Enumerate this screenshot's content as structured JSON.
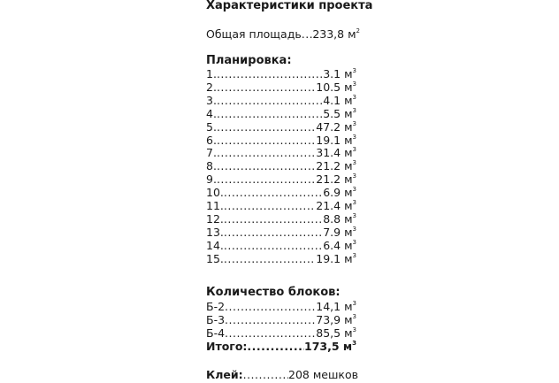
{
  "title": "Характеристики проекта",
  "area": {
    "label": "Общая площадь",
    "value": "233,8 м",
    "sup": "2"
  },
  "layout": {
    "heading": "Планировка:",
    "items": [
      {
        "label": "1. ",
        "value": "3.1 м",
        "sup": "3"
      },
      {
        "label": "2. ",
        "value": "10.5 м",
        "sup": "3"
      },
      {
        "label": "3. ",
        "value": "4.1 м",
        "sup": "3"
      },
      {
        "label": "4. ",
        "value": "5.5 м",
        "sup": "3"
      },
      {
        "label": "5. ",
        "value": "47.2 м",
        "sup": "3"
      },
      {
        "label": "6. ",
        "value": "19.1 м",
        "sup": "3"
      },
      {
        "label": "7. ",
        "value": "31.4 м",
        "sup": "3"
      },
      {
        "label": "8. ",
        "value": "21.2 м",
        "sup": "3"
      },
      {
        "label": "9. ",
        "value": "21.2 м",
        "sup": "3"
      },
      {
        "label": "10. ",
        "value": "6.9 м",
        "sup": "3"
      },
      {
        "label": "11. ",
        "value": "21.4 м",
        "sup": "3"
      },
      {
        "label": "12. ",
        "value": "8.8 м",
        "sup": "3"
      },
      {
        "label": "13. ",
        "value": "7.9 м",
        "sup": "3"
      },
      {
        "label": "14. ",
        "value": "6.4 м",
        "sup": "3"
      },
      {
        "label": "15. ",
        "value": "19.1 м",
        "sup": "3"
      }
    ]
  },
  "blocks": {
    "heading": "Количество блоков:",
    "items": [
      {
        "label": "Б-2",
        "value": "14,1 м",
        "sup": "3"
      },
      {
        "label": "Б-3",
        "value": "73,9 м",
        "sup": "3"
      },
      {
        "label": "Б-4",
        "value": "85,5 м",
        "sup": "3"
      }
    ],
    "total": {
      "label": "Итого:",
      "value": "173,5 м",
      "sup": "3"
    }
  },
  "glue": {
    "label": "Клей:",
    "value": "208 мешков"
  }
}
